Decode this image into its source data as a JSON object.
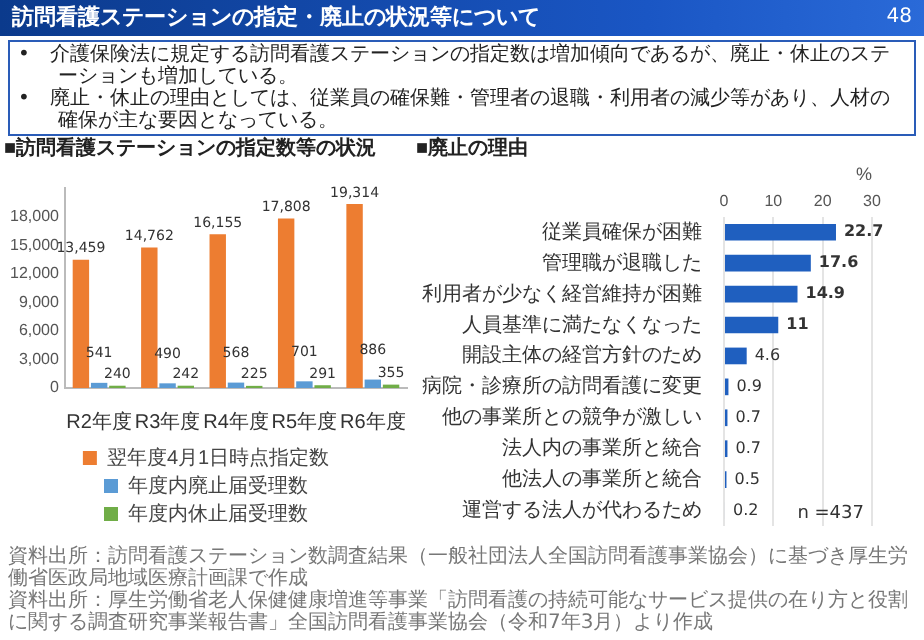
{
  "chart_data": [
    {
      "type": "other",
      "title": "訪問看護ステーションの指定・廃止の状況等について",
      "annotations": [
        "•　介護保険法に規定する訪問看護ステーションの指定数は増加傾向であるが、廃止・休止のステーションも増加している。",
        "•　廃止・休止の理由としては、従業員の確保難・管理者の退職・利用者の減少等があり、人材の確保が主な要因となっている。",
        "48"
      ]
    },
    {
      "type": "bar",
      "title": "■訪問看護ステーションの指定数等の状況",
      "categories": [
        "R2年度",
        "R3年度",
        "R4年度",
        "R5年度",
        "R6年度"
      ],
      "series": [
        {
          "name": "翌年度4月1日時点指定数",
          "color": "#ed7d31",
          "values": [
            13459,
            14762,
            16155,
            17808,
            19314
          ],
          "value_labels": [
            "13,459",
            "14,762",
            "16,155",
            "17,808",
            "19,314"
          ]
        },
        {
          "name": "年度内廃止届受理数",
          "color": "#5b9bd5",
          "values": [
            541,
            490,
            568,
            701,
            886
          ],
          "value_labels": [
            "541",
            "490",
            "568",
            "701",
            "886"
          ]
        },
        {
          "name": "年度内休止届受理数",
          "color": "#70ad47",
          "values": [
            240,
            242,
            225,
            291,
            355
          ],
          "value_labels": [
            "240",
            "242",
            "225",
            "291",
            "355"
          ]
        }
      ],
      "ylim": [
        0,
        21000
      ],
      "yticks": [
        0,
        {
          "value": 3000,
          "label": "3,000"
        },
        {
          "value": 6000,
          "label": "6,000"
        },
        {
          "value": 9000,
          "label": "9,000"
        },
        {
          "value": 12000,
          "label": "12,000"
        },
        {
          "value": 15000,
          "label": "15,000"
        },
        {
          "value": 18000,
          "label": "18,000"
        }
      ],
      "grid": false,
      "legend": "bottom",
      "annotations": [
        "資料出所：訪問看護ステーション数調査結果（一般社団法人全国訪問看護事業協会）に基づき厚生労働省医政局地域医療計画課で作成"
      ]
    },
    {
      "type": "bar",
      "orientation": "horizontal",
      "title": "■廃止の理由",
      "xlabel": "%",
      "categories": [
        "従業員確保が困難",
        "管理職が退職した",
        "利用者が少なく経営維持が困難",
        "人員基準に満たなくなった",
        "開設主体の経営方針のため",
        "病院・診療所の訪問看護に変更",
        "他の事業所との競争が激しい",
        "法人内の事業所と統合",
        "他法人の事業所と統合",
        "運営する法人が代わるため"
      ],
      "values": [
        22.7,
        17.6,
        14.9,
        11,
        4.6,
        0.9,
        0.7,
        0.7,
        0.5,
        0.2
      ],
      "color": "#1f5fbf",
      "xlim": [
        0,
        30
      ],
      "xticks": [
        0,
        10,
        20,
        30
      ],
      "grid": "x",
      "data_labels": true,
      "annotations": [
        "n =437",
        "資料出所：厚生労働省老人保健健康増進等事業「訪問看護の持続可能なサービス提供の在り方と役割に関する調査研究事業報告書」全国訪問看護事業協会（令和7年3月）より作成"
      ]
    }
  ]
}
